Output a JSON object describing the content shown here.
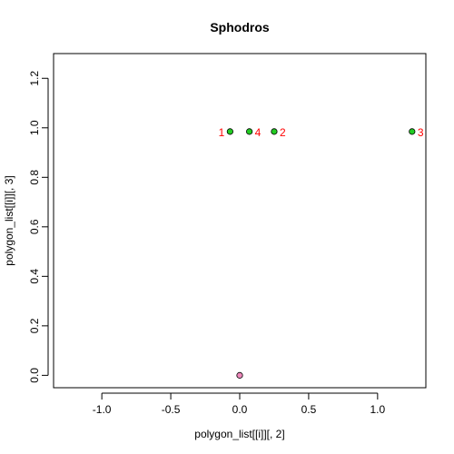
{
  "chart_data": {
    "type": "scatter",
    "title": "Sphodros",
    "xlabel": "polygon_list[[i]][, 2]",
    "ylabel": "polygon_list[[i]][, 3]",
    "xlim": [
      -1.35,
      1.35
    ],
    "ylim": [
      -0.05,
      1.3
    ],
    "x_ticks": [
      -1.0,
      -0.5,
      0.0,
      0.5,
      1.0
    ],
    "x_tick_labels": [
      "-1.0",
      "-0.5",
      "0.0",
      "0.5",
      "1.0"
    ],
    "y_ticks": [
      0.0,
      0.2,
      0.4,
      0.6,
      0.8,
      1.0,
      1.2
    ],
    "y_tick_labels": [
      "0.0",
      "0.2",
      "0.4",
      "0.6",
      "0.8",
      "1.0",
      "1.2"
    ],
    "grid": false,
    "points": [
      {
        "x": -0.07,
        "y": 0.985,
        "fill": "#22cc22",
        "label": "1",
        "label_side": "left"
      },
      {
        "x": 0.25,
        "y": 0.985,
        "fill": "#22cc22",
        "label": "2",
        "label_side": "right"
      },
      {
        "x": 1.25,
        "y": 0.985,
        "fill": "#22cc22",
        "label": "3",
        "label_side": "right"
      },
      {
        "x": 0.07,
        "y": 0.985,
        "fill": "#22cc22",
        "label": "4",
        "label_side": "right"
      },
      {
        "x": 0.0,
        "y": 0.0,
        "fill": "#ee88bb",
        "label": "",
        "label_side": "right"
      }
    ],
    "label_color": "#ff0000"
  }
}
